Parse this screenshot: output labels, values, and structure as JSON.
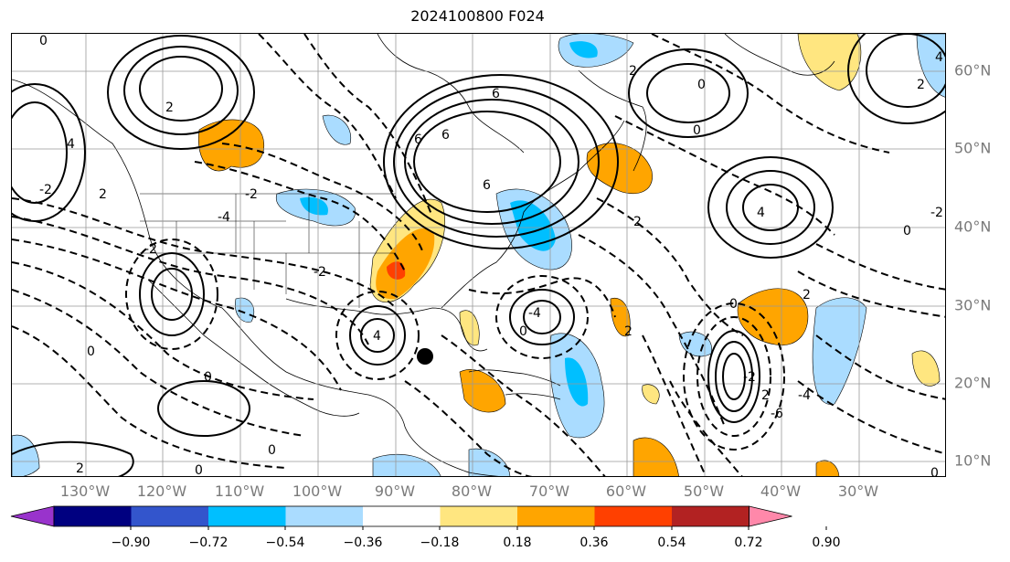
{
  "title": "2024100800 F024",
  "lon_labels": [
    "130°W",
    "120°W",
    "110°W",
    "100°W",
    "90°W",
    "80°W",
    "70°W",
    "60°W",
    "50°W",
    "40°W",
    "30°W"
  ],
  "lat_labels": [
    "60°N",
    "50°N",
    "40°N",
    "30°N",
    "20°N",
    "10°N"
  ],
  "colorbar": {
    "colors": [
      "#9933cc",
      "#000080",
      "#3355cc",
      "#00bfff",
      "#aadcff",
      "#ffffff",
      "#ffe680",
      "#ffa500",
      "#ff4000",
      "#b22222",
      "#ff88aa"
    ],
    "ticks": [
      "−0.90",
      "−0.72",
      "−0.54",
      "−0.36",
      "−0.18",
      "0.18",
      "0.36",
      "0.54",
      "0.72",
      "0.90"
    ]
  },
  "contour_labels": [
    "0",
    "2",
    "4",
    "6",
    "-2",
    "-4",
    "2",
    "0",
    "6",
    "4",
    "2",
    "0",
    "-2",
    "0",
    "2",
    "4",
    "-4",
    "0",
    "2",
    "0",
    "-2",
    "-4",
    "-6",
    "2",
    "0",
    "-2",
    "2",
    "0",
    "0",
    "4",
    "2",
    "6",
    "-2",
    "0",
    "-2",
    "6",
    "0",
    "2"
  ],
  "marker": "storm-center-dot"
}
